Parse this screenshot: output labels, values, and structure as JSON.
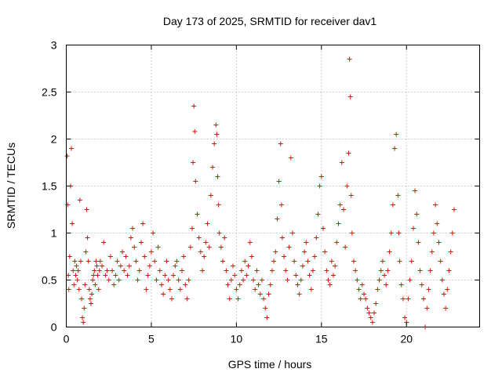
{
  "chart_data": {
    "type": "scatter",
    "title": "Day 173 of 2025, SRMTID for receiver dav1",
    "xlabel": "GPS time / hours",
    "ylabel": "SRMTID / TECUs",
    "xlim": [
      0,
      24.3
    ],
    "ylim": [
      0,
      3
    ],
    "x_ticks": [
      0,
      5,
      10,
      15,
      20
    ],
    "x_tick_labels": [
      "0",
      "5",
      "10",
      "15",
      "20"
    ],
    "y_ticks": [
      0,
      0.5,
      1,
      1.5,
      2,
      2.5,
      3
    ],
    "y_tick_labels": [
      "0",
      "0.5",
      "1",
      "1.5",
      "2",
      "2.5",
      "3"
    ],
    "grid": true,
    "marker": "plus",
    "color": "#ff0000",
    "series": [
      {
        "name": "SRMTID",
        "x": [
          0.05,
          0.08,
          0.12,
          0.15,
          0.2,
          0.25,
          0.3,
          0.35,
          0.4,
          0.45,
          0.5,
          0.55,
          0.6,
          0.65,
          0.7,
          0.75,
          0.8,
          0.85,
          0.9,
          0.95,
          1.0,
          1.05,
          1.1,
          1.15,
          1.2,
          1.25,
          1.3,
          1.35,
          1.4,
          1.45,
          1.5,
          1.55,
          1.6,
          1.65,
          1.7,
          1.75,
          1.8,
          1.85,
          1.9,
          1.95,
          2.0,
          2.1,
          2.2,
          2.3,
          2.4,
          2.5,
          2.6,
          2.7,
          2.8,
          2.9,
          3.0,
          3.1,
          3.2,
          3.3,
          3.4,
          3.5,
          3.6,
          3.7,
          3.8,
          3.9,
          4.0,
          4.1,
          4.2,
          4.3,
          4.4,
          4.5,
          4.6,
          4.7,
          4.8,
          4.9,
          5.0,
          5.1,
          5.2,
          5.3,
          5.4,
          5.5,
          5.6,
          5.7,
          5.8,
          5.9,
          6.0,
          6.1,
          6.2,
          6.3,
          6.4,
          6.5,
          6.6,
          6.7,
          6.8,
          6.9,
          7.0,
          7.1,
          7.2,
          7.3,
          7.4,
          7.45,
          7.5,
          7.55,
          7.6,
          7.7,
          7.8,
          7.9,
          8.0,
          8.1,
          8.2,
          8.3,
          8.4,
          8.5,
          8.6,
          8.7,
          8.8,
          8.85,
          8.9,
          8.95,
          9.0,
          9.1,
          9.2,
          9.3,
          9.4,
          9.5,
          9.6,
          9.7,
          9.8,
          9.9,
          10.0,
          10.1,
          10.2,
          10.3,
          10.4,
          10.5,
          10.6,
          10.7,
          10.8,
          10.9,
          11.0,
          11.1,
          11.2,
          11.3,
          11.4,
          11.5,
          11.6,
          11.7,
          11.8,
          11.9,
          12.0,
          12.1,
          12.2,
          12.3,
          12.4,
          12.5,
          12.6,
          12.65,
          12.7,
          12.8,
          12.9,
          13.0,
          13.1,
          13.2,
          13.3,
          13.4,
          13.5,
          13.6,
          13.7,
          13.8,
          13.9,
          14.0,
          14.1,
          14.2,
          14.3,
          14.4,
          14.5,
          14.6,
          14.7,
          14.8,
          14.9,
          15.0,
          15.1,
          15.2,
          15.3,
          15.4,
          15.5,
          15.6,
          15.7,
          15.8,
          15.9,
          16.0,
          16.1,
          16.2,
          16.3,
          16.4,
          16.5,
          16.6,
          16.65,
          16.7,
          16.75,
          16.8,
          16.9,
          17.0,
          17.1,
          17.2,
          17.3,
          17.4,
          17.5,
          17.6,
          17.7,
          17.8,
          17.9,
          18.0,
          18.1,
          18.2,
          18.3,
          18.4,
          18.5,
          18.6,
          18.7,
          18.8,
          18.9,
          19.0,
          19.1,
          19.2,
          19.3,
          19.4,
          19.5,
          19.55,
          19.6,
          19.7,
          19.8,
          19.9,
          20.0,
          20.1,
          20.2,
          20.3,
          20.4,
          20.5,
          20.6,
          20.7,
          20.8,
          20.9,
          21.0,
          21.1,
          21.2,
          21.3,
          21.4,
          21.5,
          21.6,
          21.7,
          21.8,
          21.9,
          22.0,
          22.1,
          22.2,
          22.3,
          22.4,
          22.5,
          22.6,
          22.7,
          22.8
        ],
        "y": [
          1.82,
          1.3,
          0.55,
          0.4,
          0.75,
          1.5,
          1.9,
          1.1,
          0.6,
          0.45,
          0.7,
          0.55,
          0.65,
          0.5,
          0.6,
          0.4,
          1.35,
          0.7,
          0.3,
          0.1,
          0.05,
          0.2,
          0.45,
          0.8,
          1.25,
          0.95,
          0.7,
          0.4,
          0.3,
          0.25,
          0.35,
          0.5,
          0.55,
          0.6,
          0.45,
          0.7,
          0.65,
          0.55,
          0.4,
          0.6,
          0.7,
          0.65,
          0.9,
          0.55,
          0.6,
          0.5,
          0.75,
          0.6,
          0.45,
          0.55,
          0.7,
          0.5,
          0.65,
          0.8,
          0.6,
          0.75,
          0.55,
          0.65,
          0.95,
          1.05,
          0.85,
          0.7,
          0.5,
          0.6,
          0.9,
          1.1,
          0.75,
          0.4,
          0.55,
          0.65,
          0.8,
          1.0,
          0.7,
          0.5,
          0.85,
          0.6,
          0.45,
          0.35,
          0.55,
          0.7,
          0.5,
          0.4,
          0.3,
          0.55,
          0.65,
          0.7,
          0.5,
          0.4,
          0.6,
          0.75,
          0.45,
          0.3,
          0.5,
          0.85,
          1.05,
          1.75,
          2.35,
          2.08,
          1.55,
          1.2,
          0.95,
          0.8,
          0.6,
          0.75,
          0.9,
          1.1,
          0.85,
          1.4,
          1.7,
          1.95,
          2.15,
          2.05,
          1.6,
          1.3,
          1.0,
          0.85,
          0.7,
          0.95,
          0.6,
          0.45,
          0.3,
          0.5,
          0.65,
          0.55,
          0.4,
          0.3,
          0.45,
          0.6,
          0.5,
          0.7,
          0.55,
          0.65,
          0.9,
          0.75,
          0.5,
          0.4,
          0.6,
          0.45,
          0.35,
          0.5,
          0.3,
          0.2,
          0.1,
          0.35,
          0.45,
          0.6,
          0.7,
          0.8,
          1.15,
          1.55,
          1.95,
          1.3,
          0.95,
          0.75,
          0.6,
          0.5,
          0.85,
          1.8,
          1.0,
          0.7,
          0.55,
          0.45,
          0.35,
          0.5,
          0.65,
          0.8,
          0.9,
          0.7,
          0.55,
          0.4,
          0.6,
          0.75,
          0.95,
          1.2,
          1.5,
          1.6,
          1.05,
          0.8,
          0.6,
          0.5,
          0.45,
          0.7,
          0.55,
          0.65,
          0.9,
          1.1,
          1.3,
          1.75,
          1.25,
          0.85,
          1.5,
          1.85,
          2.85,
          2.45,
          1.4,
          1.0,
          0.7,
          0.6,
          0.5,
          0.4,
          0.3,
          0.45,
          0.35,
          0.3,
          0.2,
          0.15,
          0.1,
          0.05,
          0.15,
          0.25,
          0.4,
          0.5,
          0.6,
          0.7,
          0.55,
          0.45,
          0.6,
          0.8,
          1.0,
          1.3,
          1.9,
          2.05,
          1.4,
          1.0,
          0.7,
          0.45,
          0.3,
          0.1,
          0.05,
          0.3,
          0.5,
          0.7,
          1.05,
          1.45,
          1.2,
          0.9,
          0.6,
          0.45,
          0.3,
          0.0,
          0.2,
          0.4,
          0.6,
          0.8,
          1.0,
          1.3,
          1.1,
          0.9,
          0.7,
          0.5,
          0.35,
          0.2,
          0.4,
          0.6,
          0.8,
          1.0,
          1.25
        ]
      }
    ]
  }
}
